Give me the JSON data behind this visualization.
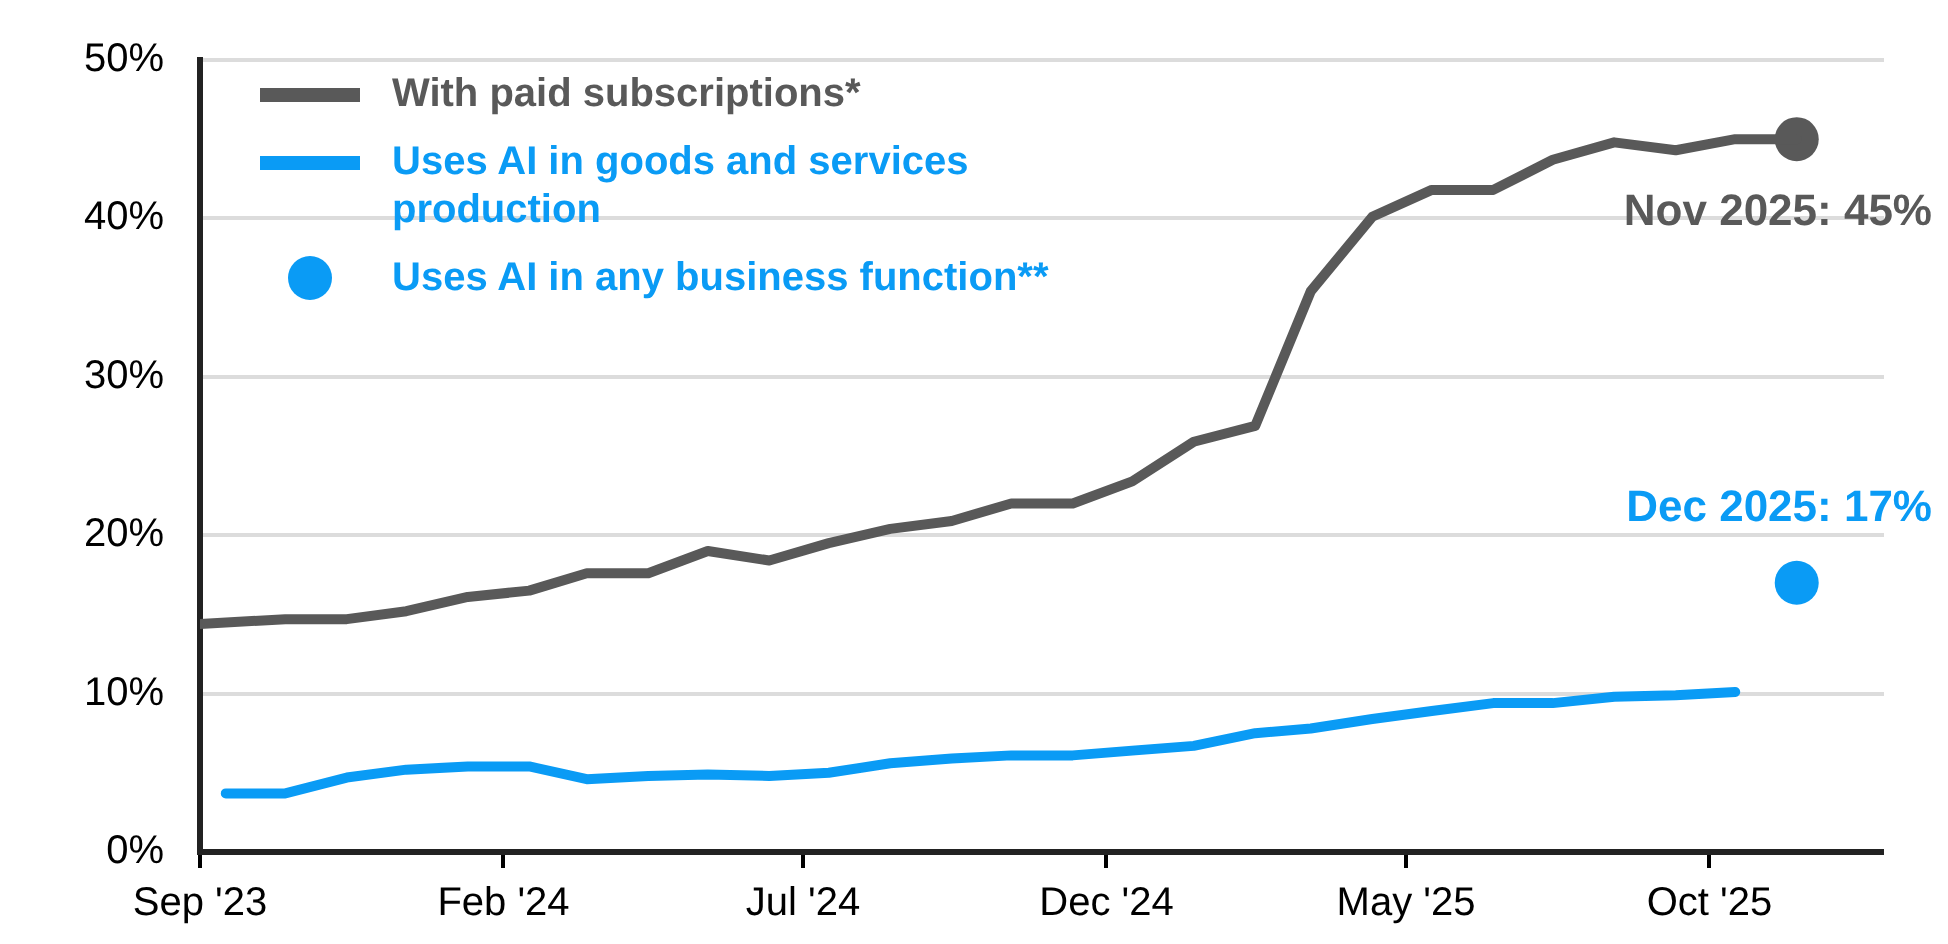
{
  "chart_data": {
    "type": "line",
    "xlim": [
      "2023-09-01",
      "2025-12-28"
    ],
    "xticks": [
      {
        "value": "2023-09-01",
        "label": "Sep '23"
      },
      {
        "value": "2024-02-01",
        "label": "Feb '24"
      },
      {
        "value": "2024-07-01",
        "label": "Jul '24"
      },
      {
        "value": "2024-12-01",
        "label": "Dec '24"
      },
      {
        "value": "2025-05-01",
        "label": "May '25"
      },
      {
        "value": "2025-10-01",
        "label": "Oct '25"
      }
    ],
    "ylim": [
      0,
      50
    ],
    "yticks": [
      {
        "value": 0,
        "label": "0%"
      },
      {
        "value": 10,
        "label": "10%"
      },
      {
        "value": 20,
        "label": "20%"
      },
      {
        "value": 30,
        "label": "30%"
      },
      {
        "value": 40,
        "label": "40%"
      },
      {
        "value": 50,
        "label": "50%"
      }
    ],
    "grid": "y",
    "legend": "top left",
    "marker": "none",
    "line_style": "solid",
    "series": [
      {
        "name": "With paid subscriptions*",
        "color": "#595959",
        "x": [
          "2023-09-01",
          "2023-10-14",
          "2023-11-14",
          "2023-12-14",
          "2024-01-14",
          "2024-02-14",
          "2024-03-14",
          "2024-04-14",
          "2024-05-14",
          "2024-06-14",
          "2024-07-14",
          "2024-08-14",
          "2024-09-14",
          "2024-10-14",
          "2024-11-14",
          "2024-12-14",
          "2025-01-14",
          "2025-02-14",
          "2025-03-14",
          "2025-04-14",
          "2025-05-14",
          "2025-06-14",
          "2025-07-14",
          "2025-08-14",
          "2025-09-14",
          "2025-10-14",
          "2025-11-14"
        ],
        "values": [
          14.4,
          14.7,
          14.7,
          15.2,
          16.1,
          16.5,
          17.6,
          17.6,
          19.0,
          18.4,
          19.5,
          20.4,
          20.9,
          22.0,
          22.0,
          23.4,
          25.9,
          26.9,
          35.4,
          40.1,
          41.8,
          41.8,
          43.7,
          44.8,
          44.3,
          45.0,
          45
        ]
      },
      {
        "name": "Uses AI in goods and services production",
        "color": "#0a9bf5",
        "x": [
          "2023-09-14",
          "2023-10-14",
          "2023-11-14",
          "2023-12-14",
          "2024-01-14",
          "2024-02-14",
          "2024-03-14",
          "2024-04-14",
          "2024-05-14",
          "2024-06-14",
          "2024-07-14",
          "2024-08-14",
          "2024-09-14",
          "2024-10-14",
          "2024-11-14",
          "2024-12-14",
          "2025-01-14",
          "2025-02-14",
          "2025-03-14",
          "2025-04-14",
          "2025-05-14",
          "2025-06-14",
          "2025-07-14",
          "2025-08-14",
          "2025-09-14",
          "2025-10-14"
        ],
        "values": [
          3.7,
          3.7,
          4.7,
          5.2,
          5.4,
          5.4,
          4.6,
          4.8,
          4.9,
          4.8,
          5.0,
          5.6,
          5.9,
          6.1,
          6.1,
          6.4,
          6.7,
          7.5,
          7.8,
          8.4,
          8.9,
          9.4,
          9.4,
          9.8,
          9.9,
          10.1
        ]
      },
      {
        "type": "scatter",
        "marker": "circle",
        "color": "#595959",
        "x": [
          "2025-11-14"
        ],
        "values": [
          45
        ]
      },
      {
        "type": "scatter",
        "marker": "circle",
        "name": "Uses AI in any business function**",
        "color": "#0a9bf5",
        "x": [
          "2025-11-14"
        ],
        "values": [
          17
        ]
      }
    ],
    "annotations": [
      {
        "text": "Nov 2025: 45%",
        "x": "2025-11-14",
        "y": 45
      },
      {
        "text": "Dec 2025: 17%",
        "x": "2025-11-14",
        "y": 17
      }
    ]
  }
}
